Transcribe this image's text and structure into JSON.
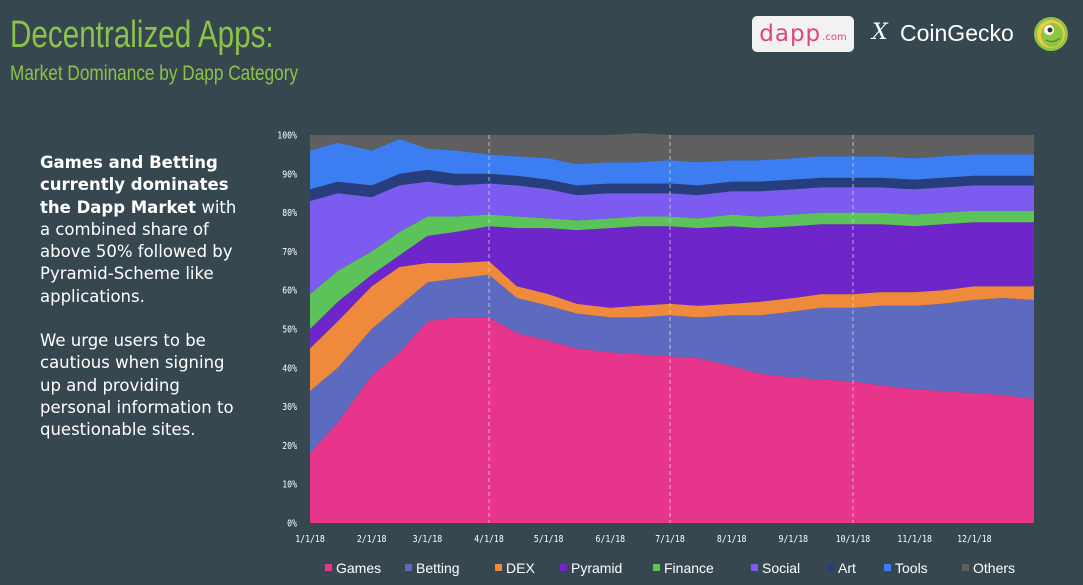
{
  "header": {
    "title": "Decentralized Apps:",
    "subtitle": "Market Dominance by Dapp Category",
    "logo_text": "dapp",
    "logo_suffix": ".com",
    "cross": "X",
    "brand": "CoinGecko"
  },
  "description": {
    "p1_bold": "Games and Betting currently dominates the Dapp Market",
    "p1_rest": " with a combined share of above 50% followed by Pyramid-Scheme like applications.",
    "p2": "We urge users to be cautious when signing up and providing personal information to questionable sites."
  },
  "colors": {
    "background": "#37474f",
    "title": "#8bc34a",
    "Games": "#e6358a",
    "Betting": "#5c6bc0",
    "DEX": "#ef8a3c",
    "Pyramid": "#6e25c9",
    "Finance": "#5cc25a",
    "Social": "#7b5bf0",
    "Art": "#273e7c",
    "Tools": "#3d7df2",
    "Others": "#5f5f5f"
  },
  "chart_data": {
    "type": "area",
    "stacked": true,
    "x": [
      "1/1/18",
      "1/15/18",
      "2/1/18",
      "2/15/18",
      "3/1/18",
      "3/15/18",
      "4/1/18",
      "4/15/18",
      "5/1/18",
      "5/15/18",
      "6/1/18",
      "6/15/18",
      "7/1/18",
      "7/15/18",
      "8/1/18",
      "8/15/18",
      "9/1/18",
      "9/15/18",
      "10/1/18",
      "10/15/18",
      "11/1/18",
      "11/15/18",
      "12/1/18",
      "12/15/18",
      "12/31/18"
    ],
    "xticks": [
      "1/1/18",
      "2/1/18",
      "3/1/18",
      "4/1/18",
      "5/1/18",
      "6/1/18",
      "7/1/18",
      "8/1/18",
      "9/1/18",
      "10/1/18",
      "11/1/18",
      "12/1/18"
    ],
    "yticks": [
      "0%",
      "10%",
      "20%",
      "30%",
      "40%",
      "50%",
      "60%",
      "70%",
      "80%",
      "90%",
      "100%"
    ],
    "ylim": [
      0,
      100
    ],
    "dashed_lines": [
      "4/1/18",
      "7/1/18",
      "10/1/18"
    ],
    "series": [
      {
        "name": "Games",
        "values": [
          18,
          26,
          38,
          44,
          52,
          53,
          53,
          49,
          47,
          45,
          44,
          43.5,
          43,
          42.5,
          40.5,
          38.5,
          37.5,
          37,
          36.5,
          35.5,
          34.5,
          34,
          33.5,
          33,
          32
        ]
      },
      {
        "name": "Betting",
        "values": [
          16,
          14,
          12,
          12,
          10,
          10,
          11,
          9,
          9,
          9,
          9,
          9.5,
          10.5,
          10.5,
          13,
          15,
          17,
          18.5,
          19,
          20.5,
          21.5,
          22.5,
          24,
          25,
          25.5
        ]
      },
      {
        "name": "DEX",
        "values": [
          11,
          12,
          11,
          10,
          5,
          4,
          3.5,
          3,
          3,
          2.5,
          2.5,
          3,
          3,
          3,
          3,
          3.5,
          3.5,
          3.5,
          3.5,
          3.5,
          3.5,
          3.5,
          3.5,
          3,
          3.5
        ]
      },
      {
        "name": "Pyramid",
        "values": [
          5,
          5,
          3,
          3,
          7,
          8,
          9,
          15,
          17,
          19,
          20.5,
          20.5,
          20,
          20,
          20,
          19,
          18.5,
          18,
          18,
          17.5,
          17,
          17,
          16.5,
          16.5,
          16.5
        ]
      },
      {
        "name": "Finance",
        "values": [
          9,
          8,
          6,
          6,
          5,
          4,
          3,
          3,
          2.5,
          2.5,
          2.5,
          2.5,
          2.5,
          2.5,
          3,
          3,
          3,
          3,
          3,
          3,
          3,
          3,
          3,
          3,
          3
        ]
      },
      {
        "name": "Social",
        "values": [
          24,
          20,
          14,
          12,
          9,
          8,
          8,
          8,
          7.5,
          6.5,
          6.5,
          6,
          6,
          6,
          6,
          6.5,
          6.5,
          6.5,
          6.5,
          6.5,
          6.5,
          6.5,
          6.5,
          6.5,
          6.5
        ]
      },
      {
        "name": "Art",
        "values": [
          3,
          3,
          3,
          3,
          3,
          3,
          2.5,
          2.5,
          2.5,
          2.5,
          2.5,
          2.5,
          2.5,
          2.5,
          2.5,
          2.5,
          2.5,
          2.5,
          2.5,
          2.5,
          2.5,
          2.5,
          2.5,
          2.5,
          2.5
        ]
      },
      {
        "name": "Tools",
        "values": [
          10,
          10,
          9,
          9,
          5.5,
          6,
          5,
          5,
          5.5,
          5.5,
          5.5,
          5.5,
          6,
          6,
          5.5,
          5.5,
          5.5,
          5.5,
          5.5,
          5.5,
          5.5,
          5.5,
          5.5,
          5.5,
          5.5
        ]
      },
      {
        "name": "Others",
        "values": [
          4,
          2,
          4,
          1,
          3.5,
          4,
          5,
          5.5,
          6,
          7.5,
          7,
          7.5,
          6.5,
          7,
          6.5,
          6.5,
          6,
          5.5,
          5.5,
          5.5,
          6,
          5.5,
          5,
          5,
          5
        ]
      }
    ],
    "legend": [
      "Games",
      "Betting",
      "DEX",
      "Pyramid",
      "Finance",
      "Social",
      "Art",
      "Tools",
      "Others"
    ],
    "legend_position": "bottom",
    "grid": false
  }
}
